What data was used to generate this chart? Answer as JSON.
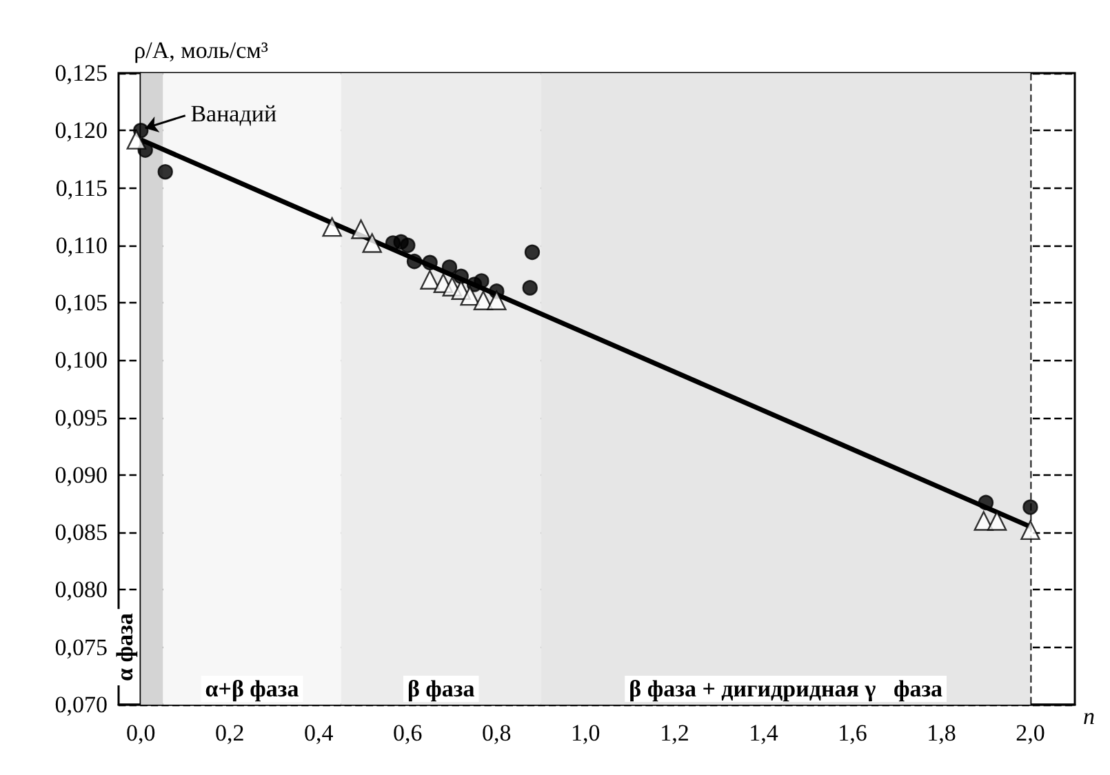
{
  "chart_data": {
    "type": "scatter",
    "ylabel": "ρ/A, моль/см³",
    "xlabel": "n",
    "xlim": [
      -0.05,
      2.1
    ],
    "ylim": [
      0.07,
      0.125
    ],
    "xticks": [
      {
        "value": 0,
        "label": "0,0"
      },
      {
        "value": 0.2,
        "label": "0,2"
      },
      {
        "value": 0.4,
        "label": "0,4"
      },
      {
        "value": 0.6,
        "label": "0,6"
      },
      {
        "value": 0.8,
        "label": "0,8"
      },
      {
        "value": 1.0,
        "label": "1,0"
      },
      {
        "value": 1.2,
        "label": "1,2"
      },
      {
        "value": 1.4,
        "label": "1,4"
      },
      {
        "value": 1.6,
        "label": "1,6"
      },
      {
        "value": 1.8,
        "label": "1,8"
      },
      {
        "value": 2.0,
        "label": "2,0"
      }
    ],
    "yticks": [
      {
        "value": 0.07,
        "label": "0,070"
      },
      {
        "value": 0.075,
        "label": "0,075"
      },
      {
        "value": 0.08,
        "label": "0,080"
      },
      {
        "value": 0.085,
        "label": "0,085"
      },
      {
        "value": 0.09,
        "label": "0,090"
      },
      {
        "value": 0.095,
        "label": "0,095"
      },
      {
        "value": 0.1,
        "label": "0,100"
      },
      {
        "value": 0.105,
        "label": "0,105"
      },
      {
        "value": 0.11,
        "label": "0,110"
      },
      {
        "value": 0.115,
        "label": "0,115"
      },
      {
        "value": 0.12,
        "label": "0,120"
      },
      {
        "value": 0.125,
        "label": "0,125"
      }
    ],
    "grid": true,
    "line_style": "dashed",
    "bands": [
      {
        "axis": "x",
        "from": 0.0,
        "to": 0.05,
        "label": "α фаза",
        "color": "#d4d4d4"
      },
      {
        "axis": "x",
        "from": 0.05,
        "to": 0.45,
        "label": "α+β фаза",
        "color": "#f7f7f7"
      },
      {
        "axis": "x",
        "from": 0.45,
        "to": 0.9,
        "label": "β фаза",
        "color": "#ececec"
      },
      {
        "axis": "x",
        "from": 0.9,
        "to": 2.0,
        "label": "β фаза + дигидридная γ   фаза",
        "color": "#e6e6e6"
      }
    ],
    "annotations": [
      {
        "text": "Ванадий",
        "x": 0.0,
        "y": 0.12
      }
    ],
    "series": [
      {
        "marker": "circle",
        "color": "#000000",
        "x": [
          0.0,
          0.01,
          0.055,
          0.567,
          0.585,
          0.6,
          0.615,
          0.65,
          0.694,
          0.72,
          0.75,
          0.766,
          0.8,
          0.875,
          0.88,
          1.9,
          2.0
        ],
        "values": [
          0.12,
          0.1183,
          0.1164,
          0.1102,
          0.1103,
          0.11,
          0.1086,
          0.1085,
          0.1081,
          0.1073,
          0.1066,
          0.1069,
          0.106,
          0.1063,
          0.1094,
          0.0876,
          0.0872
        ]
      },
      {
        "marker": "triangle",
        "color": "#ffffff",
        "x": [
          -0.01,
          0.43,
          0.495,
          0.52,
          0.65,
          0.68,
          0.7,
          0.72,
          0.74,
          0.77,
          0.8,
          1.895,
          1.925,
          2.0
        ],
        "values": [
          0.1192,
          0.1116,
          0.1114,
          0.1102,
          0.107,
          0.1067,
          0.1064,
          0.1061,
          0.1056,
          0.1052,
          0.1052,
          0.086,
          0.086,
          0.0852
        ]
      },
      {
        "type": "line",
        "marker": "none",
        "line_style": "solid",
        "color": "#000000",
        "x": [
          0.0,
          2.0
        ],
        "values": [
          0.1192,
          0.0855
        ]
      }
    ]
  }
}
